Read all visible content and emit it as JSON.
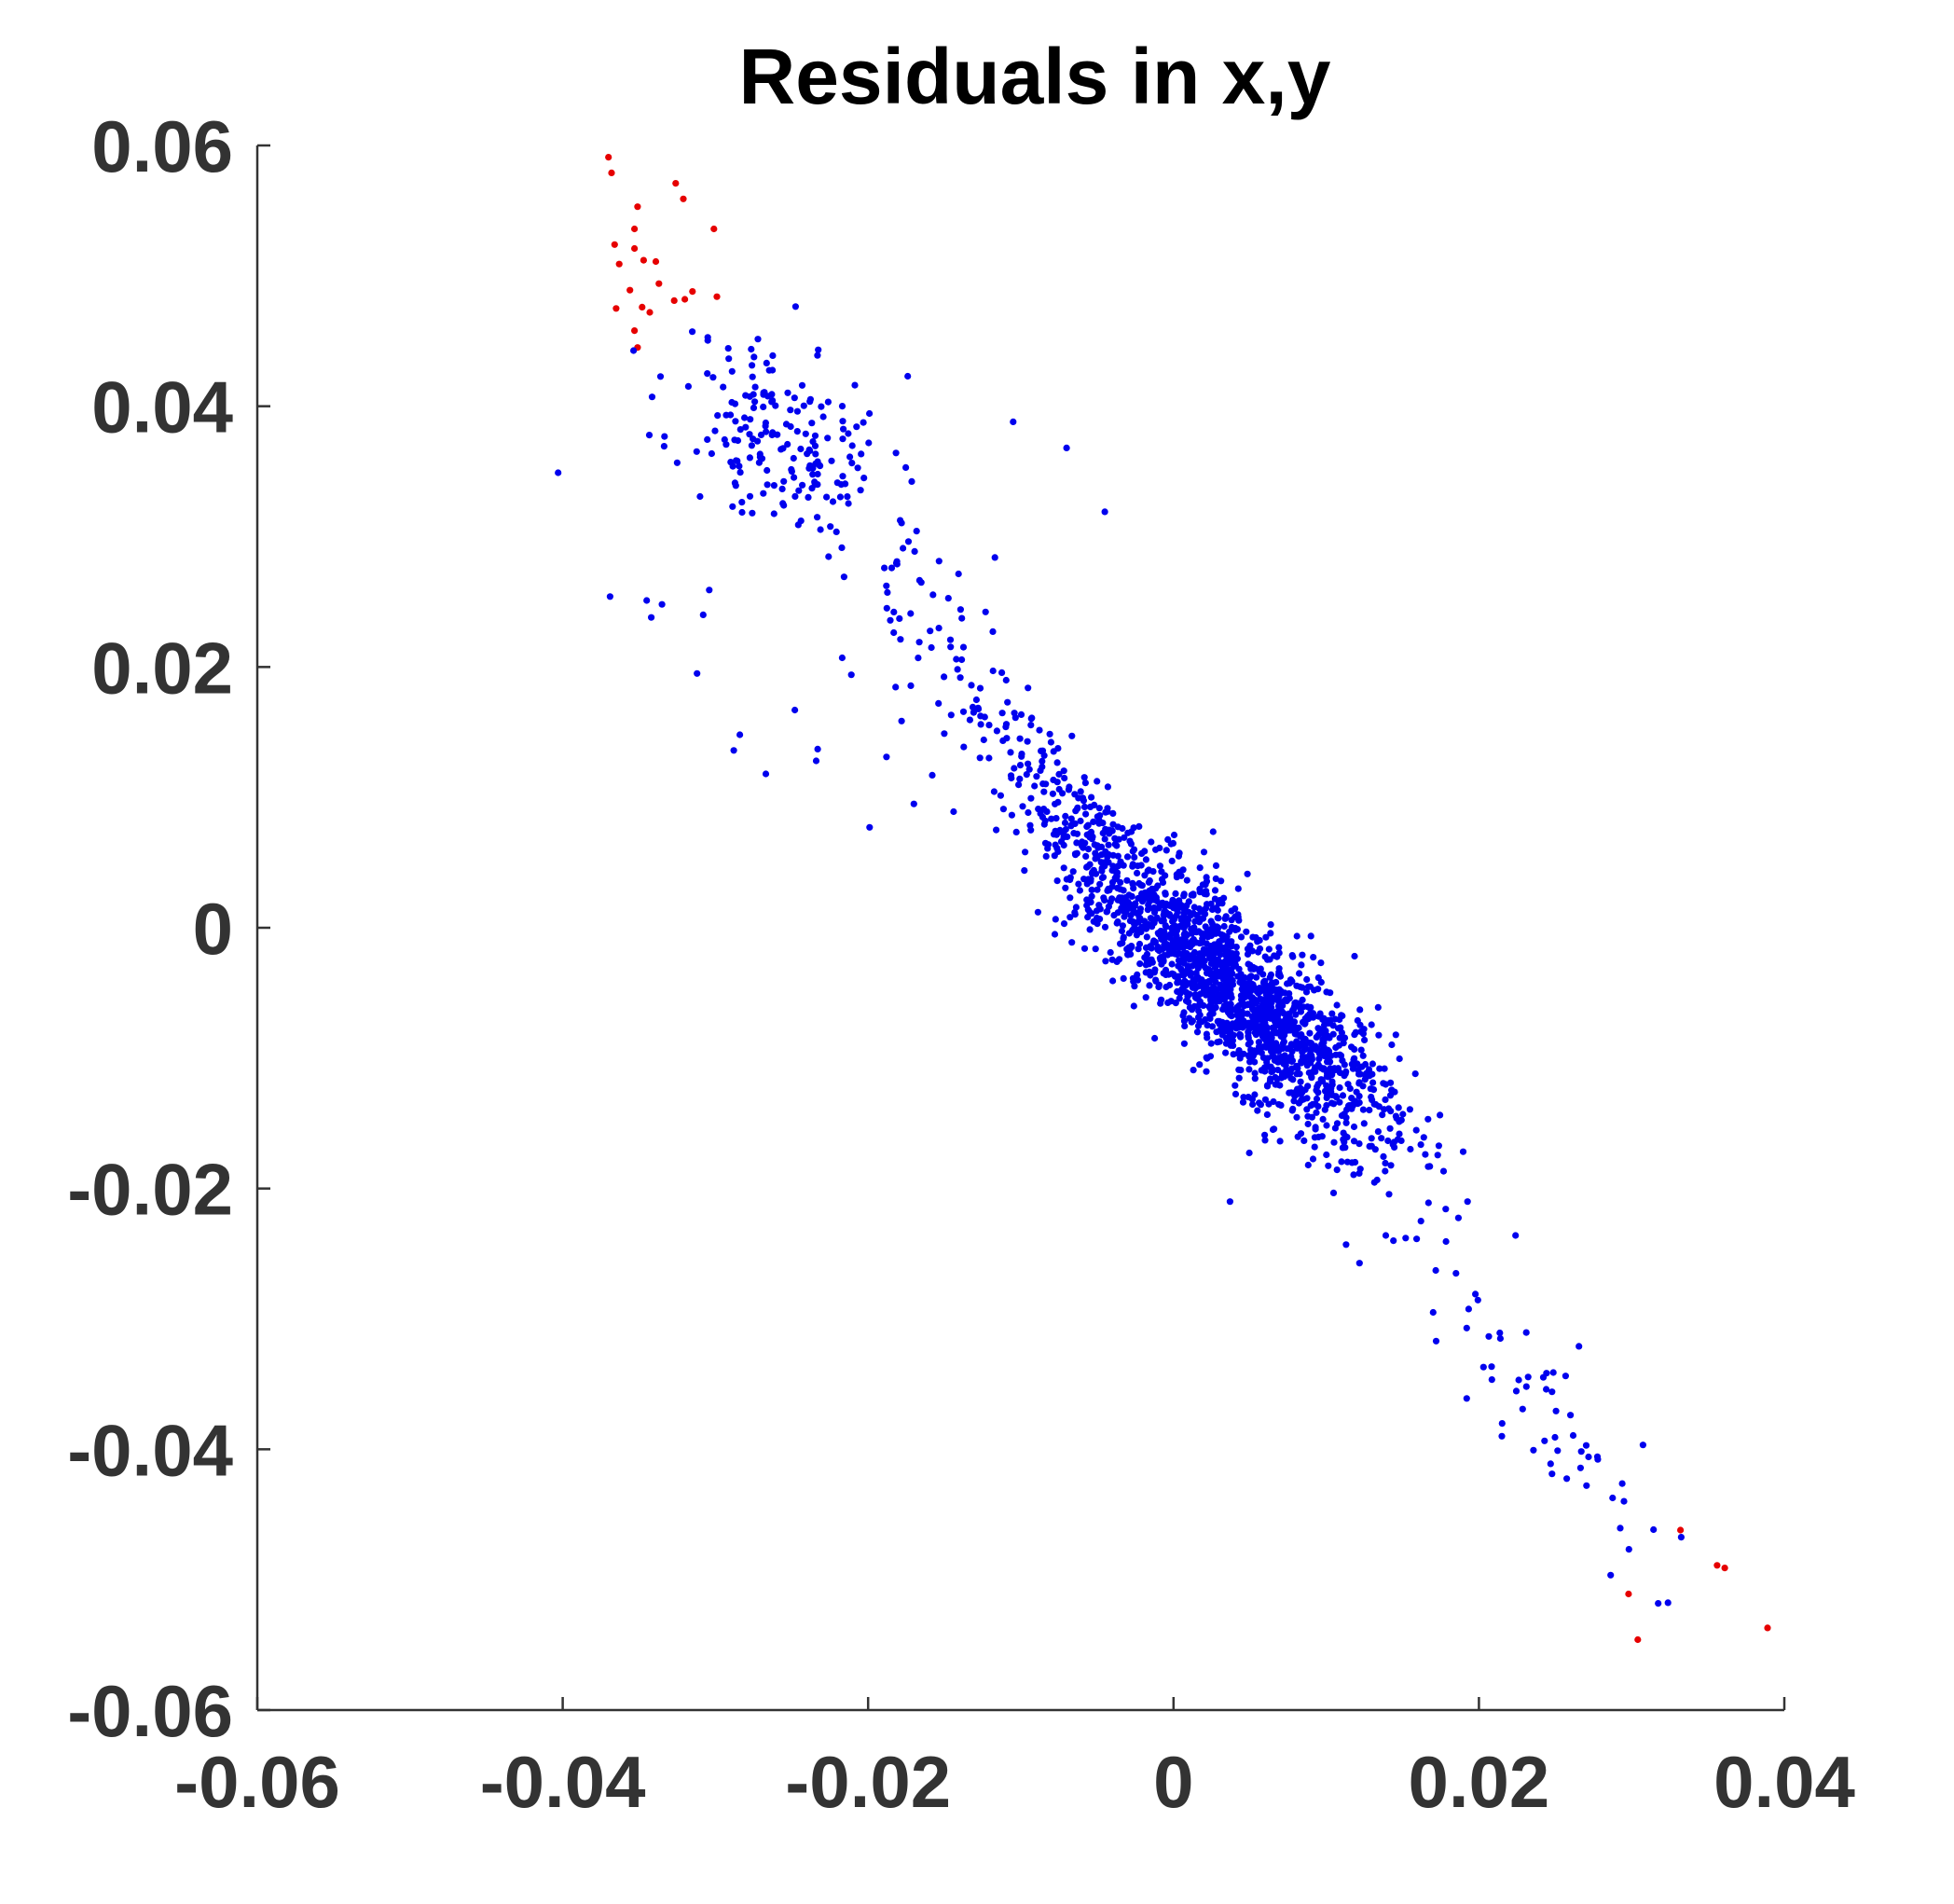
{
  "chart_data": {
    "type": "scatter",
    "title": "Residuals in x,y",
    "xlabel": "",
    "ylabel": "",
    "xlim": [
      -0.06,
      0.04
    ],
    "ylim": [
      -0.06,
      0.06
    ],
    "x_ticks": [
      -0.06,
      -0.04,
      -0.02,
      0,
      0.02,
      0.04
    ],
    "x_tick_labels": [
      "-0.06",
      "-0.04",
      "-0.02",
      "0",
      "0.02",
      "0.04"
    ],
    "y_ticks": [
      -0.06,
      -0.04,
      -0.02,
      0,
      0.02,
      0.04,
      0.06
    ],
    "y_tick_labels": [
      "-0.06",
      "-0.04",
      "-0.02",
      "0",
      "0.02",
      "0.04",
      "0.06"
    ],
    "grid": false,
    "legend": "none",
    "box": "left-bottom axes only",
    "series": [
      {
        "color": "#e60000",
        "points": [
          [
            -0.037,
            0.0591
          ],
          [
            -0.0368,
            0.0579
          ],
          [
            -0.0326,
            0.0571
          ],
          [
            -0.0321,
            0.0559
          ],
          [
            -0.0351,
            0.0553
          ],
          [
            -0.0301,
            0.0536
          ],
          [
            -0.0353,
            0.0536
          ],
          [
            -0.0366,
            0.0524
          ],
          [
            -0.0353,
            0.0521
          ],
          [
            -0.0347,
            0.0512
          ],
          [
            -0.0339,
            0.0511
          ],
          [
            -0.0363,
            0.0509
          ],
          [
            -0.0337,
            0.0494
          ],
          [
            -0.0356,
            0.0489
          ],
          [
            -0.0315,
            0.0488
          ],
          [
            -0.0299,
            0.0484
          ],
          [
            -0.0327,
            0.0481
          ],
          [
            -0.032,
            0.0482
          ],
          [
            -0.0348,
            0.0476
          ],
          [
            -0.0365,
            0.0475
          ],
          [
            -0.0343,
            0.0472
          ],
          [
            -0.0353,
            0.0458
          ],
          [
            -0.0351,
            0.0445
          ],
          [
            0.0332,
            -0.0462
          ],
          [
            0.0356,
            -0.0489
          ],
          [
            0.0361,
            -0.0491
          ],
          [
            0.0298,
            -0.0511
          ],
          [
            0.0389,
            -0.0537
          ],
          [
            0.0304,
            -0.0546
          ]
        ]
      },
      {
        "color": "#0000ee",
        "clusters": [
          {
            "center": [
              -0.0255,
              0.0375
            ],
            "sd": [
              0.0035,
              0.004
            ],
            "rho": -0.3,
            "n": 190,
            "seed": 11
          },
          {
            "center": [
              -0.015,
              0.0215
            ],
            "sd": [
              0.003,
              0.0045
            ],
            "rho": -0.8,
            "n": 70,
            "seed": 23
          },
          {
            "center": [
              -0.006,
              0.009
            ],
            "sd": [
              0.003,
              0.0035
            ],
            "rho": -0.8,
            "n": 130,
            "seed": 37
          },
          {
            "center": [
              0.003,
              -0.0035
            ],
            "sd": [
              0.0055,
              0.0058
            ],
            "rho": -0.86,
            "n": 1400,
            "seed": 41
          },
          {
            "center": [
              0.0065,
              -0.0085
            ],
            "sd": [
              0.004,
              0.004
            ],
            "rho": -0.75,
            "n": 300,
            "seed": 53
          },
          {
            "center": [
              0.01,
              -0.015
            ],
            "sd": [
              0.0035,
              0.003
            ],
            "rho": -0.3,
            "n": 60,
            "seed": 61
          },
          {
            "center": [
              0.0255,
              -0.038
            ],
            "sd": [
              0.0045,
              0.006
            ],
            "rho": -0.85,
            "n": 55,
            "seed": 73
          }
        ],
        "points": [
          [
            -0.0403,
            0.0349
          ],
          [
            -0.007,
            0.0368
          ],
          [
            -0.0045,
            0.0319
          ],
          [
            -0.0105,
            0.0388
          ],
          [
            -0.0369,
            0.0254
          ],
          [
            -0.0345,
            0.0251
          ],
          [
            -0.0335,
            0.0248
          ],
          [
            -0.0342,
            0.0238
          ],
          [
            -0.0312,
            0.0195
          ],
          [
            -0.0248,
            0.0167
          ],
          [
            -0.0284,
            0.0148
          ],
          [
            -0.0288,
            0.0136
          ],
          [
            -0.0267,
            0.0118
          ],
          [
            -0.0233,
            0.0137
          ],
          [
            -0.0234,
            0.0128
          ],
          [
            -0.0199,
            0.0077
          ],
          [
            -0.0188,
            0.0131
          ],
          [
            -0.0158,
            0.0117
          ],
          [
            -0.017,
            0.0095
          ],
          [
            -0.0144,
            0.0089
          ],
          [
            -0.0217,
            0.0207
          ],
          [
            -0.0211,
            0.0194
          ],
          [
            0.0113,
            -0.0243
          ],
          [
            0.0139,
            -0.0236
          ],
          [
            0.0144,
            -0.024
          ],
          [
            0.0152,
            -0.0238
          ],
          [
            0.0162,
            -0.0225
          ],
          [
            0.0167,
            -0.0211
          ],
          [
            0.0037,
            -0.021
          ],
          [
            0.0185,
            -0.0265
          ],
          [
            0.017,
            -0.0295
          ],
          [
            0.0172,
            -0.0317
          ],
          [
            0.0192,
            -0.0307
          ],
          [
            0.0192,
            -0.0361
          ],
          [
            0.0215,
            -0.039
          ],
          [
            0.0224,
            -0.0236
          ],
          [
            -0.0308,
            0.024
          ],
          [
            -0.0304,
            0.0259
          ],
          [
            -0.0117,
            0.0284
          ]
        ]
      }
    ]
  }
}
